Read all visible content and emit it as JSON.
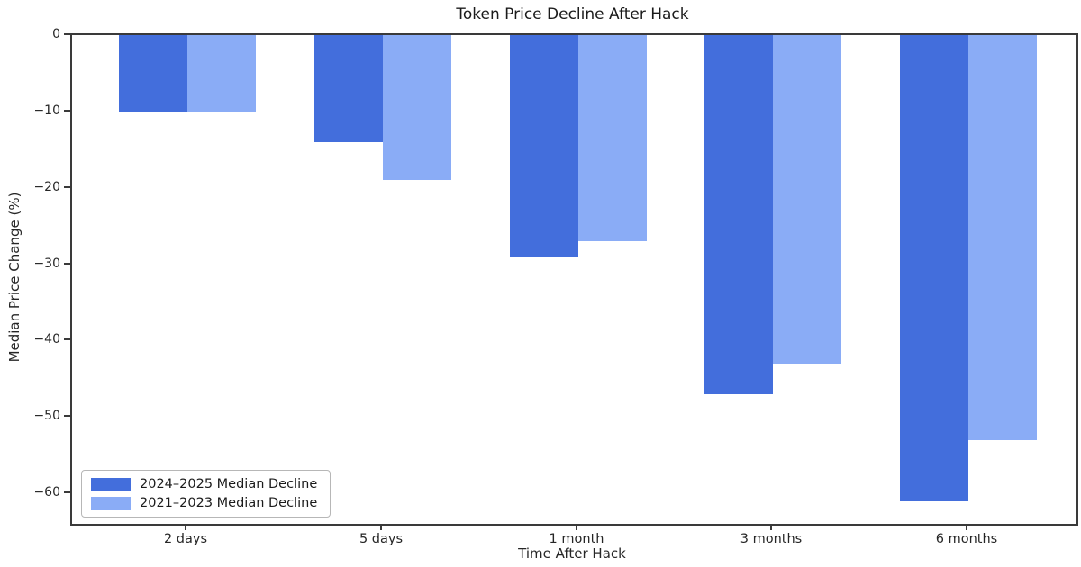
{
  "chart_data": {
    "type": "bar",
    "title": "Token Price Decline After Hack",
    "xlabel": "Time After Hack",
    "ylabel": "Median Price Change (%)",
    "categories": [
      "2 days",
      "5 days",
      "1 month",
      "3 months",
      "6 months"
    ],
    "series": [
      {
        "name": "2024–2025 Median Decline",
        "color": "#436EDC",
        "values": [
          -10,
          -14,
          -29,
          -47,
          -61
        ]
      },
      {
        "name": "2021–2023 Median Decline",
        "color": "#8AACF6",
        "values": [
          -10,
          -19,
          -27,
          -43,
          -53
        ]
      }
    ],
    "ylim": [
      -64,
      0
    ],
    "yticks": [
      0,
      -10,
      -20,
      -30,
      -40,
      -50,
      -60
    ],
    "grid": false,
    "legend_position": "lower left",
    "colors": {
      "spine": "#3a3a3a",
      "text": "#262626",
      "background": "#ffffff"
    }
  }
}
